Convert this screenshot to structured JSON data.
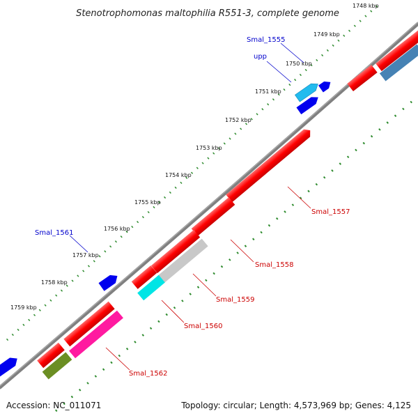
{
  "title": "Stenotrophomonas maltophilia R551-3, complete genome",
  "ticks": [
    "1748 kbp",
    "1749 kbp",
    "1750 kbp",
    "1751 kbp",
    "1752 kbp",
    "1753 kbp",
    "1754 kbp",
    "1755 kbp",
    "1756 kbp",
    "1757 kbp",
    "1758 kbp",
    "1759 kbp"
  ],
  "gene_labels": {
    "smal_1555": "Smal_1555",
    "upp": "upp",
    "smal_1557": "Smal_1557",
    "smal_1558": "Smal_1558",
    "smal_1559": "Smal_1559",
    "smal_1560": "Smal_1560",
    "smal_1561": "Smal_1561",
    "smal_1562": "Smal_1562"
  },
  "footer": {
    "accession": "Accession: NC_011071",
    "summary": "Topology: circular; Length: 4,573,969 bp; Genes: 4,125"
  },
  "colors": {
    "backbone": "#808080",
    "gene_red": "#ff0000",
    "gene_blue": "#0000ee",
    "gene_cyan": "#00e5e5",
    "gene_sky": "#22bbee",
    "gene_grey": "#c8c8c8",
    "gene_magenta": "#ff1aa0",
    "gene_olive": "#6b8e23",
    "gene_steel": "#4682b4",
    "tick_green": "#2e8b2e",
    "label_blue": "#0000cc",
    "label_red": "#cc0000"
  }
}
